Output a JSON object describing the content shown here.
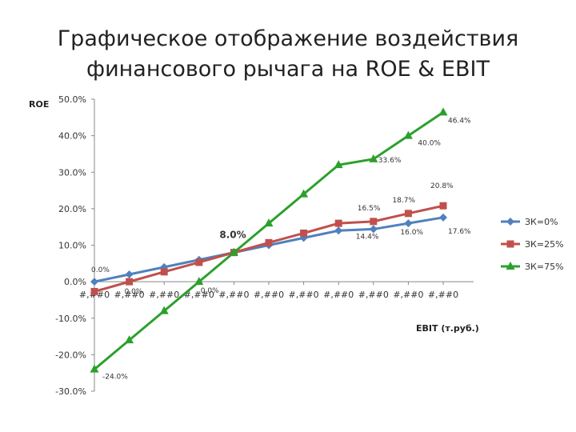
{
  "title_line1": "Графическое отображение воздействия",
  "title_line2": "финансового рычага на ROE & EBIT",
  "chart_data": {
    "type": "line",
    "ylabel": "ROE",
    "xlabel": "EBIT (т.руб.)",
    "ylim": [
      -30,
      50
    ],
    "yticks": [
      "50.0%",
      "40.0%",
      "30.0%",
      "20.0%",
      "10.0%",
      "0.0%",
      "-10.0%",
      "-20.0%",
      "-30.0%"
    ],
    "categories": [
      "#,##0",
      "#,##0",
      "#,##0",
      "#,##0",
      "#,##0",
      "#,##0",
      "#,##0",
      "#,##0",
      "#,##0",
      "#,##0",
      "#,##0"
    ],
    "series": [
      {
        "name": "ЗК=0%",
        "color": "#4f81bd",
        "marker": "diamond",
        "values": [
          0.0,
          2.0,
          4.0,
          6.0,
          8.0,
          10.0,
          12.0,
          14.0,
          14.4,
          16.0,
          17.6
        ]
      },
      {
        "name": "ЗК=25%",
        "color": "#c0504d",
        "marker": "square",
        "values": [
          -2.7,
          0.0,
          2.7,
          5.3,
          8.0,
          10.7,
          13.3,
          16.0,
          16.5,
          18.7,
          20.8
        ]
      },
      {
        "name": "ЗК=75%",
        "color": "#2ca02c",
        "marker": "triangle",
        "values": [
          -24.0,
          -16.0,
          -8.0,
          0.0,
          8.0,
          16.0,
          24.0,
          32.0,
          33.6,
          40.0,
          46.4
        ]
      }
    ],
    "x_positions": [
      0,
      1,
      2,
      3,
      4,
      5,
      6,
      7,
      8,
      9,
      10
    ],
    "data_labels": [
      {
        "series": 0,
        "index": 0,
        "text": "0.0%"
      },
      {
        "series": 1,
        "index": 1,
        "text": "0.0%"
      },
      {
        "series": 2,
        "index": 3,
        "text": "0.0%"
      },
      {
        "series": 2,
        "index": 4,
        "text": "8.0%"
      },
      {
        "series": 0,
        "index": 8,
        "text": "14.4%"
      },
      {
        "series": 1,
        "index": 8,
        "text": "16.5%"
      },
      {
        "series": 0,
        "index": 9,
        "text": "16.0%"
      },
      {
        "series": 1,
        "index": 9,
        "text": "18.7%"
      },
      {
        "series": 0,
        "index": 10,
        "text": "17.6%"
      },
      {
        "series": 1,
        "index": 10,
        "text": "20.8%"
      },
      {
        "series": 2,
        "index": 8,
        "text": "33.6%"
      },
      {
        "series": 2,
        "index": 9,
        "text": "40.0%"
      },
      {
        "series": 2,
        "index": 10,
        "text": "46.4%"
      },
      {
        "series": 2,
        "index": 0,
        "text": "-24.0%"
      }
    ],
    "legend_position": "right",
    "grid": false
  }
}
